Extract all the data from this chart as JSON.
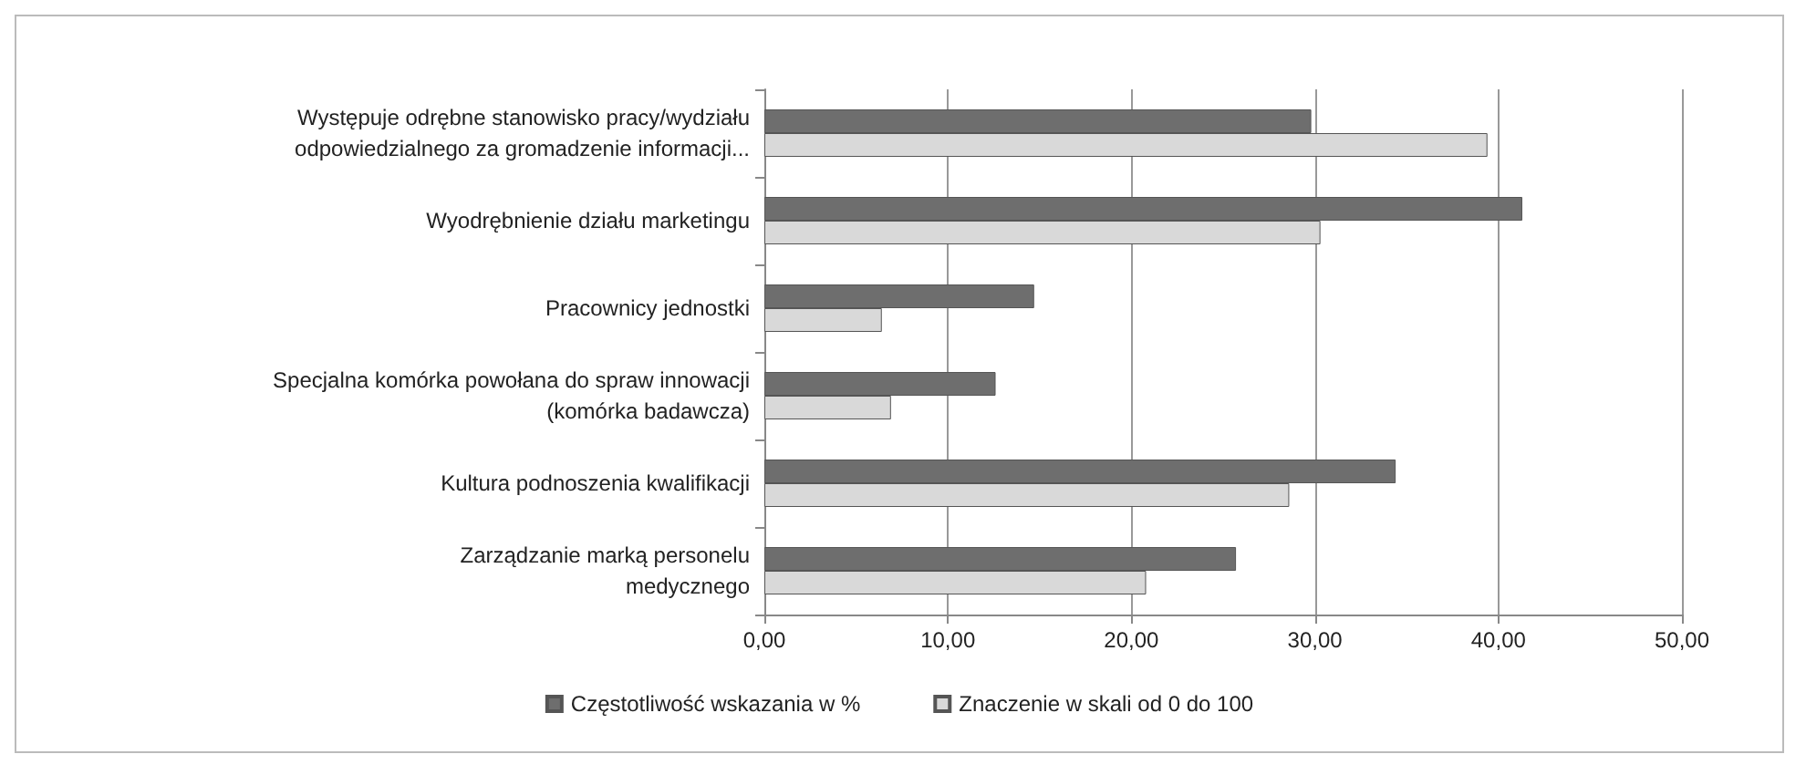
{
  "chart_data": {
    "type": "bar",
    "orientation": "horizontal",
    "categories": [
      "Występuje odrębne stanowisko pracy/wydziału\nodpowiedzialnego za gromadzenie informacji...",
      "Wyodrębnienie działu marketingu",
      "Pracownicy jednostki",
      "Specjalna komórka powołana do spraw innowacji\n(komórka badawcza)",
      "Kultura podnoszenia kwalifikacji",
      "Zarządzanie marką personelu\nmedycznego"
    ],
    "series": [
      {
        "name": "Częstotliwość wskazania w %",
        "color": "#6e6e6e",
        "values": [
          29.8,
          41.3,
          14.7,
          12.6,
          34.4,
          25.7
        ]
      },
      {
        "name": "Znaczenie w skali od 0 do 100",
        "color": "#d9d9d9",
        "values": [
          39.4,
          30.3,
          6.4,
          6.9,
          28.6,
          20.8
        ]
      }
    ],
    "xlim": [
      0,
      50
    ],
    "xticks": [
      {
        "value": 0,
        "label": "0,00"
      },
      {
        "value": 10,
        "label": "10,00"
      },
      {
        "value": 20,
        "label": "20,00"
      },
      {
        "value": 30,
        "label": "30,00"
      },
      {
        "value": 40,
        "label": "40,00"
      },
      {
        "value": 50,
        "label": "50,00"
      }
    ],
    "grid": "x",
    "legend": "bottom"
  }
}
